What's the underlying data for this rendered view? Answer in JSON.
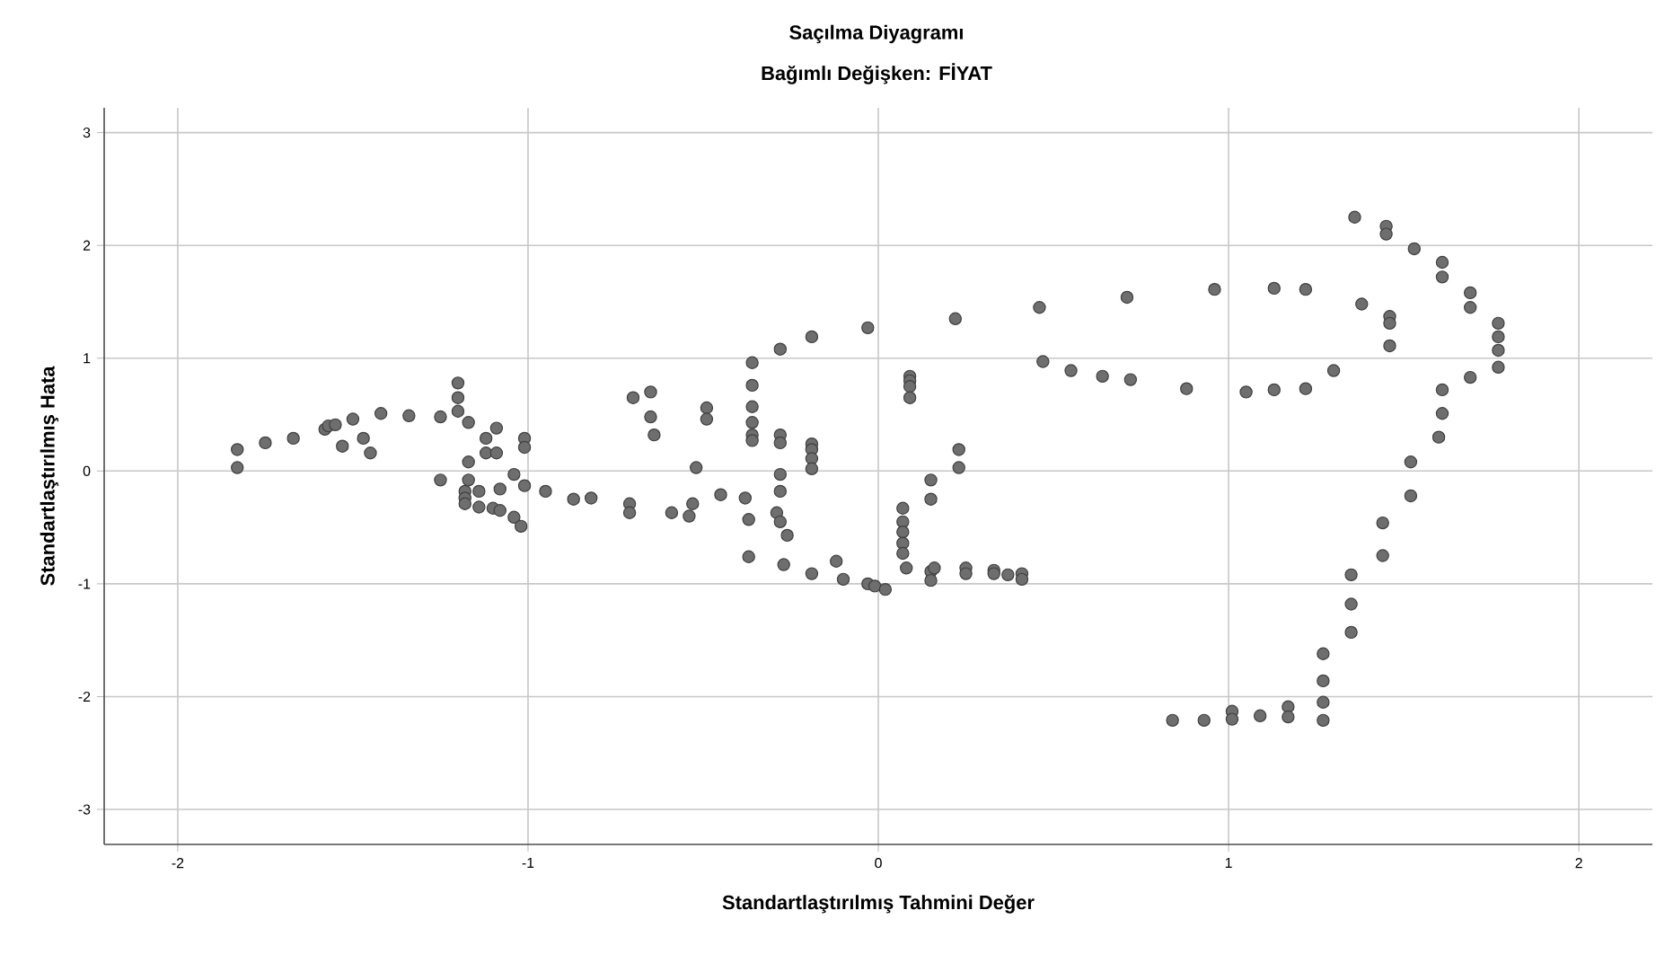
{
  "chart_data": {
    "type": "scatter",
    "title": "Saçılma Diyagramı",
    "subtitle": "Bağımlı Değişken: FİYAT",
    "xlabel": "Standartlaştırılmış Tahmini Değer",
    "ylabel": "Standartlaştırılmış Hata",
    "color": "#6e6e6e",
    "marker": "circle",
    "grid": true,
    "xlim": [
      -2.21,
      2.21
    ],
    "ylim": [
      -3.31,
      3.22
    ],
    "xticks": [
      -2,
      -1,
      0,
      1,
      2
    ],
    "yticks": [
      -3,
      -2,
      -1,
      0,
      1,
      2,
      3
    ],
    "x": [
      -1.83,
      -1.83,
      -1.75,
      -1.67,
      -1.58,
      -1.57,
      -1.55,
      -1.53,
      -1.47,
      -1.45,
      -1.5,
      -1.42,
      -1.34,
      -1.25,
      -1.2,
      -1.2,
      -1.2,
      -1.17,
      -1.17,
      -1.25,
      -1.12,
      -1.09,
      -1.12,
      -1.09,
      -1.01,
      -1.01,
      -1.17,
      -1.18,
      -1.18,
      -1.18,
      -1.14,
      -1.14,
      -1.1,
      -1.08,
      -1.08,
      -1.04,
      -1.01,
      -1.04,
      -1.02,
      -0.95,
      -0.87,
      -0.82,
      -0.71,
      -0.71,
      -0.7,
      -0.65,
      -0.65,
      -0.64,
      -0.59,
      -0.54,
      -0.53,
      -0.52,
      -0.45,
      -0.38,
      -0.37,
      -0.37,
      -0.49,
      -0.49,
      -0.36,
      -0.36,
      -0.36,
      -0.36,
      -0.36,
      -0.36,
      -0.28,
      -0.19,
      -0.03,
      -0.28,
      -0.28,
      -0.28,
      -0.28,
      -0.29,
      -0.28,
      -0.26,
      -0.19,
      -0.19,
      -0.19,
      -0.19,
      -0.27,
      -0.19,
      -0.12,
      -0.1,
      -0.03,
      -0.01,
      0.02,
      0.22,
      0.46,
      0.71,
      0.47,
      0.55,
      0.64,
      0.72,
      0.88,
      0.09,
      0.09,
      0.09,
      0.09,
      0.23,
      0.23,
      0.15,
      0.15,
      0.07,
      0.07,
      0.07,
      0.07,
      0.07,
      0.08,
      0.15,
      0.16,
      0.15,
      0.25,
      0.25,
      0.33,
      0.33,
      0.37,
      0.41,
      0.41,
      0.96,
      1.13,
      1.22,
      1.36,
      1.45,
      1.45,
      1.53,
      1.61,
      1.61,
      1.69,
      1.69,
      1.77,
      1.77,
      1.77,
      1.77,
      1.38,
      1.46,
      1.46,
      1.46,
      1.05,
      1.13,
      1.22,
      1.3,
      1.61,
      1.69,
      1.61,
      1.6,
      1.52,
      1.52,
      1.44,
      1.44,
      1.35,
      1.35,
      1.35,
      1.27,
      1.27,
      1.27,
      1.27,
      0.84,
      0.93,
      1.01,
      1.01,
      1.09,
      1.17,
      1.17
    ],
    "values": [
      0.19,
      0.03,
      0.25,
      0.29,
      0.37,
      0.4,
      0.41,
      0.22,
      0.29,
      0.16,
      0.46,
      0.51,
      0.49,
      0.48,
      0.78,
      0.65,
      0.53,
      0.43,
      0.08,
      -0.08,
      0.29,
      0.38,
      0.16,
      0.16,
      0.29,
      0.21,
      -0.08,
      -0.18,
      -0.24,
      -0.29,
      -0.18,
      -0.32,
      -0.33,
      -0.35,
      -0.16,
      -0.03,
      -0.13,
      -0.41,
      -0.49,
      -0.18,
      -0.25,
      -0.24,
      -0.29,
      -0.37,
      0.65,
      0.7,
      0.48,
      0.32,
      -0.37,
      -0.4,
      -0.29,
      0.03,
      -0.21,
      -0.24,
      -0.43,
      -0.76,
      0.56,
      0.46,
      0.96,
      0.76,
      0.57,
      0.43,
      0.32,
      0.27,
      1.08,
      1.19,
      1.27,
      0.32,
      0.25,
      -0.03,
      -0.18,
      -0.37,
      -0.45,
      -0.57,
      0.24,
      0.19,
      0.11,
      0.02,
      -0.83,
      -0.91,
      -0.8,
      -0.96,
      -1.0,
      -1.02,
      -1.05,
      1.35,
      1.45,
      1.54,
      0.97,
      0.89,
      0.84,
      0.81,
      0.73,
      0.84,
      0.8,
      0.75,
      0.65,
      0.19,
      0.03,
      -0.08,
      -0.25,
      -0.33,
      -0.45,
      -0.54,
      -0.64,
      -0.73,
      -0.86,
      -0.89,
      -0.86,
      -0.97,
      -0.86,
      -0.91,
      -0.88,
      -0.91,
      -0.92,
      -0.91,
      -0.96,
      1.61,
      1.62,
      1.61,
      2.25,
      2.17,
      2.1,
      1.97,
      1.85,
      1.72,
      1.58,
      1.45,
      1.31,
      1.19,
      1.07,
      0.92,
      1.48,
      1.37,
      1.31,
      1.11,
      0.7,
      0.72,
      0.73,
      0.89,
      0.72,
      0.83,
      0.51,
      0.3,
      0.08,
      -0.22,
      -0.46,
      -0.75,
      -0.92,
      -1.18,
      -1.43,
      -1.62,
      -1.86,
      -2.05,
      -2.21,
      -2.21,
      -2.21,
      -2.13,
      -2.2,
      -2.17,
      -2.09,
      -2.18
    ]
  }
}
